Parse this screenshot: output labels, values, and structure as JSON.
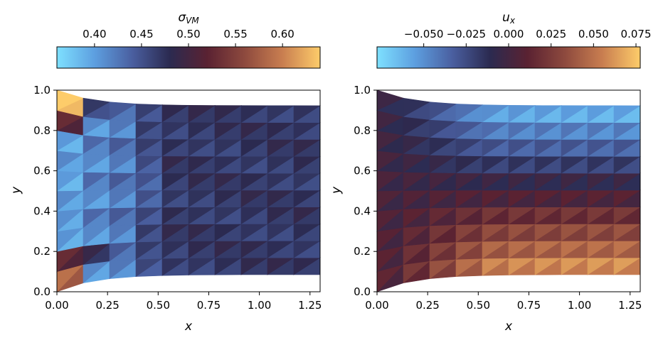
{
  "chart_data": [
    {
      "type": "heatmap",
      "subtype": "triangular-mesh",
      "colorbar_label": "σ_VM",
      "colorbar_label_main": "σ",
      "colorbar_label_sub": "VM",
      "colorbar_range": [
        0.36,
        0.64
      ],
      "colorbar_ticks": [
        0.4,
        0.45,
        0.5,
        0.55,
        0.6
      ],
      "colorbar_tick_labels": [
        "0.40",
        "0.45",
        "0.50",
        "0.55",
        "0.60"
      ],
      "xlabel": "x",
      "ylabel": "y",
      "xlim": [
        0.0,
        1.3
      ],
      "ylim": [
        0.0,
        1.0
      ],
      "xticks": [
        "0.00",
        "0.25",
        "0.50",
        "0.75",
        "1.00",
        "1.25"
      ],
      "yticks": [
        "0.0",
        "0.2",
        "0.4",
        "0.6",
        "0.8",
        "1.0"
      ],
      "field": "von-mises-stress",
      "features": {
        "hotspot_corners": 0.64,
        "left_low_band": 0.38,
        "interior_level": 0.47
      }
    },
    {
      "type": "heatmap",
      "subtype": "triangular-mesh",
      "colorbar_label": "u_x",
      "colorbar_label_main": "u",
      "colorbar_label_sub": "x",
      "colorbar_range": [
        -0.0775,
        0.0775
      ],
      "colorbar_ticks": [
        -0.05,
        -0.025,
        0.0,
        0.025,
        0.05,
        0.075
      ],
      "colorbar_tick_labels": [
        "−0.050",
        "−0.025",
        "0.000",
        "0.025",
        "0.050",
        "0.075"
      ],
      "xlabel": "x",
      "ylabel": "y",
      "xlim": [
        0.0,
        1.3
      ],
      "ylim": [
        0.0,
        1.0
      ],
      "xticks": [
        "0.00",
        "0.25",
        "0.50",
        "0.75",
        "1.00",
        "1.25"
      ],
      "yticks": [
        "0.0",
        "0.2",
        "0.4",
        "0.6",
        "0.8",
        "1.0"
      ],
      "field": "x-displacement",
      "features": {
        "top_right_value": -0.0775,
        "bottom_right_value": 0.0775,
        "left_edge_value": 0.0
      }
    }
  ],
  "colors": {
    "colormap": [
      "#7ee0ff",
      "#5d9fe0",
      "#4a5fa0",
      "#2b2a50",
      "#5a2232",
      "#8e4a3e",
      "#c97e50",
      "#fdcc6a"
    ],
    "axis": "#000000",
    "background": "#ffffff"
  }
}
